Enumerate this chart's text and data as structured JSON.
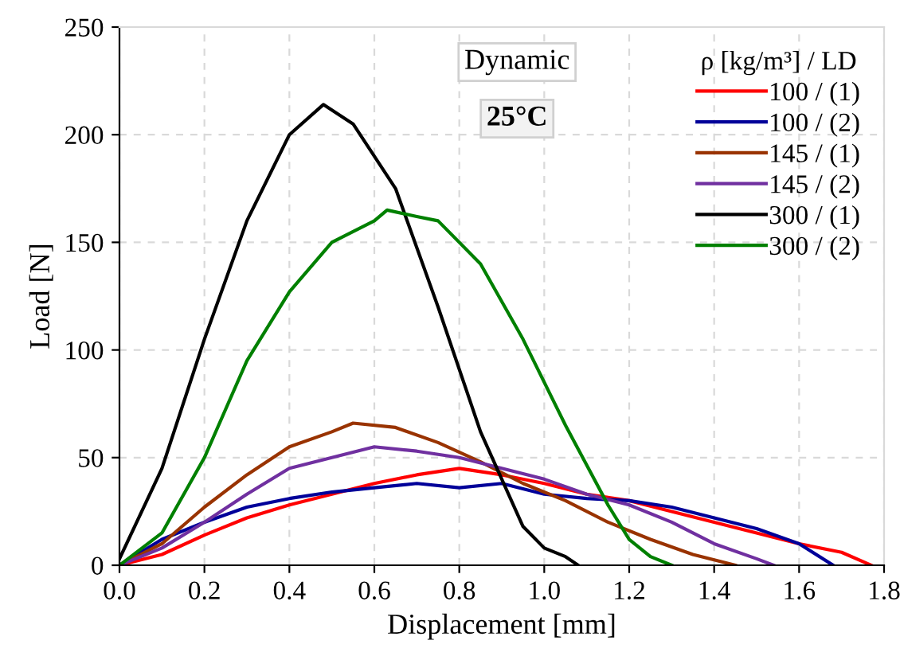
{
  "chart_data": {
    "type": "line",
    "xlabel": "Displacement [mm]",
    "ylabel": "Load [N]",
    "legend_title": "ρ [kg/m³] / LD",
    "xlim": [
      0,
      1.8
    ],
    "xticks": [
      {
        "value": 0,
        "label": "0.0"
      },
      0.2,
      0.4,
      0.6,
      0.8,
      {
        "value": 1,
        "label": "1.0"
      },
      1.2,
      1.4,
      1.6,
      1.8
    ],
    "ylim": [
      0,
      250
    ],
    "yticks": [
      0,
      50,
      100,
      150,
      200,
      250
    ],
    "grid": true,
    "legend": "top right",
    "line_style": "solid",
    "marker": "none",
    "annotations": [
      "Dynamic",
      "25°C"
    ],
    "series": [
      {
        "name": "100 / (1)",
        "color": "#ff0000",
        "x": [
          0,
          0.1,
          0.2,
          0.3,
          0.4,
          0.5,
          0.6,
          0.7,
          0.8,
          0.9,
          1.0,
          1.1,
          1.2,
          1.3,
          1.4,
          1.5,
          1.6,
          1.7,
          1.77
        ],
        "values": [
          0,
          5,
          14,
          22,
          28,
          33,
          38,
          42,
          45,
          42,
          38,
          33,
          30,
          25,
          20,
          15,
          10,
          6,
          0
        ]
      },
      {
        "name": "100 / (2)",
        "color": "#000099",
        "x": [
          0,
          0.1,
          0.2,
          0.3,
          0.4,
          0.5,
          0.6,
          0.7,
          0.8,
          0.9,
          1.0,
          1.1,
          1.2,
          1.3,
          1.4,
          1.5,
          1.6,
          1.68
        ],
        "values": [
          0,
          12,
          20,
          27,
          31,
          34,
          36,
          38,
          36,
          38,
          33,
          31,
          30,
          27,
          22,
          17,
          10,
          0
        ]
      },
      {
        "name": "145 / (1)",
        "color": "#993300",
        "x": [
          0,
          0.1,
          0.2,
          0.3,
          0.4,
          0.5,
          0.55,
          0.65,
          0.75,
          0.85,
          0.95,
          1.05,
          1.15,
          1.25,
          1.35,
          1.45
        ],
        "values": [
          0,
          10,
          27,
          42,
          55,
          62,
          66,
          64,
          57,
          48,
          38,
          30,
          20,
          12,
          5,
          0
        ]
      },
      {
        "name": "145 / (2)",
        "color": "#7030a0",
        "x": [
          0,
          0.1,
          0.2,
          0.3,
          0.4,
          0.5,
          0.6,
          0.7,
          0.8,
          0.9,
          1.0,
          1.1,
          1.2,
          1.3,
          1.4,
          1.5,
          1.54
        ],
        "values": [
          0,
          8,
          20,
          33,
          45,
          50,
          55,
          53,
          50,
          45,
          40,
          33,
          28,
          20,
          10,
          3,
          0
        ]
      },
      {
        "name": "300 / (1)",
        "color": "#000000",
        "x": [
          0,
          0.1,
          0.2,
          0.3,
          0.4,
          0.48,
          0.55,
          0.65,
          0.75,
          0.85,
          0.95,
          1.0,
          1.05,
          1.08
        ],
        "values": [
          3,
          45,
          105,
          160,
          200,
          214,
          205,
          175,
          120,
          62,
          18,
          8,
          4,
          0
        ]
      },
      {
        "name": "300 / (2)",
        "color": "#008000",
        "x": [
          0,
          0.1,
          0.2,
          0.3,
          0.4,
          0.5,
          0.6,
          0.63,
          0.7,
          0.75,
          0.85,
          0.95,
          1.05,
          1.15,
          1.2,
          1.25,
          1.3
        ],
        "values": [
          0,
          15,
          50,
          95,
          127,
          150,
          160,
          165,
          162,
          160,
          140,
          105,
          65,
          28,
          12,
          4,
          0
        ]
      }
    ]
  }
}
